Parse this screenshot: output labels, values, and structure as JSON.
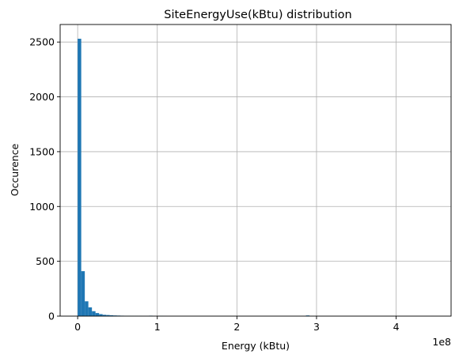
{
  "chart_data": {
    "type": "bar",
    "title": "SiteEnergyUse(kBtu) distribution",
    "xlabel": "Energy (kBtu)",
    "ylabel": "Occurence",
    "x_offset_text": "1e8",
    "xlim": [
      -0.22,
      4.69
    ],
    "ylim": [
      0,
      2660
    ],
    "x_ticks": [
      0,
      1,
      2,
      3,
      4
    ],
    "x_tick_labels": [
      "0",
      "1",
      "2",
      "3",
      "4"
    ],
    "y_ticks": [
      0,
      500,
      1000,
      1500,
      2000,
      2500
    ],
    "y_tick_labels": [
      "0",
      "500",
      "1000",
      "1500",
      "2000",
      "2500"
    ],
    "grid": true,
    "bar_color": "#1f77b4",
    "bin_width": 0.0448,
    "bin_edges_start": 0.0,
    "values": [
      2530,
      410,
      135,
      80,
      45,
      28,
      18,
      12,
      10,
      8,
      6,
      5,
      4,
      3,
      3,
      2,
      2,
      2,
      1,
      1,
      4,
      1,
      1,
      2,
      1,
      0,
      0,
      0,
      0,
      0,
      0,
      0,
      0,
      0,
      0,
      0,
      0,
      0,
      0,
      0,
      0,
      0,
      0,
      0,
      0,
      0,
      0,
      0,
      0,
      0,
      0,
      0,
      0,
      0,
      0,
      0,
      0,
      0,
      0,
      0,
      0,
      0,
      0,
      0,
      6,
      0,
      0,
      0,
      0,
      0,
      0,
      0,
      0,
      0,
      0,
      0,
      0,
      0,
      0,
      0,
      0,
      0,
      0,
      0,
      0,
      0,
      0,
      0,
      0,
      0,
      0,
      0,
      0,
      0,
      0,
      0,
      0,
      0,
      0,
      1
    ]
  }
}
